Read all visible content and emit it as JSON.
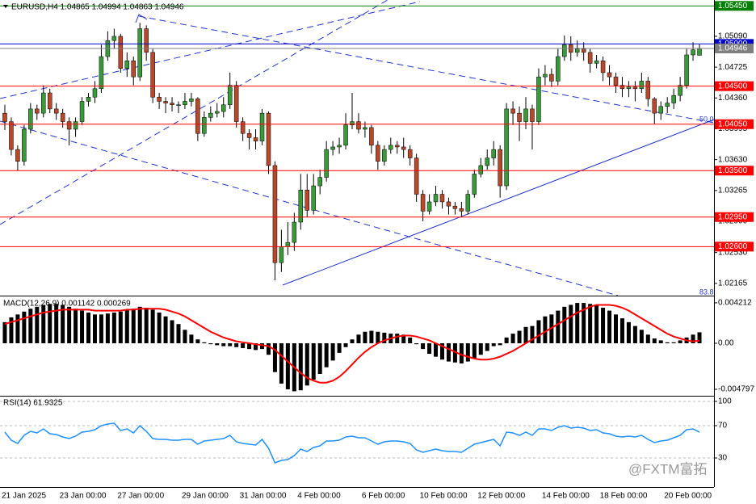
{
  "chart_data": [
    {
      "type": "candlestick",
      "title": "EURUSD,H4  1.04865 1.04994 1.04863 1.04946",
      "categories": [
        "21 Jan 2025",
        null,
        null,
        null,
        null,
        null,
        null,
        null,
        null,
        "23 Jan 00:00",
        null,
        null,
        null,
        null,
        null,
        null,
        null,
        null,
        "27 Jan 00:00",
        null,
        null,
        null,
        null,
        null,
        null,
        null,
        null,
        null,
        "29 Jan 00:00",
        null,
        null,
        null,
        null,
        null,
        null,
        null,
        null,
        "31 Jan 00:00",
        null,
        null,
        null,
        null,
        null,
        null,
        null,
        null,
        "4 Feb 00:00",
        null,
        null,
        null,
        null,
        null,
        null,
        null,
        null,
        null,
        "6 Feb 00:00",
        null,
        null,
        null,
        null,
        null,
        null,
        null,
        null,
        "10 Feb 00:00",
        null,
        null,
        null,
        null,
        null,
        null,
        null,
        null,
        "12 Feb 00:00",
        null,
        null,
        null,
        null,
        null,
        null,
        null,
        null,
        null,
        "14 Feb 00:00",
        null,
        null,
        null,
        null,
        null,
        null,
        null,
        null,
        "18 Feb 00:00",
        null,
        null,
        null,
        null,
        null,
        null,
        null,
        null,
        null,
        "20 Feb 00:00",
        null,
        null,
        null,
        null,
        null
      ],
      "open": [
        1.0418,
        1.0408,
        1.0375,
        1.0361,
        1.0399,
        1.0423,
        1.0418,
        1.0442,
        1.0423,
        1.0418,
        1.0408,
        1.0399,
        1.0408,
        1.0432,
        1.0437,
        1.0447,
        1.0485,
        1.0504,
        1.0509,
        1.0471,
        1.048,
        1.0461,
        1.0518,
        1.049,
        1.0437,
        1.0432,
        1.043,
        1.0428,
        1.0428,
        1.0432,
        1.0435,
        1.0394,
        1.0413,
        1.0418,
        1.042,
        1.0428,
        1.0451,
        1.0408,
        1.0394,
        1.0389,
        1.0385,
        1.0418,
        1.0356,
        1.0241,
        1.026,
        1.0265,
        1.0289,
        1.0327,
        1.0303,
        1.0332,
        1.0342,
        1.0375,
        1.0378,
        1.038,
        1.0404,
        1.0408,
        1.0399,
        1.0401,
        1.038,
        1.0361,
        1.0375,
        1.038,
        1.0378,
        1.0375,
        1.0365,
        1.0322,
        1.0302,
        1.0313,
        1.0322,
        1.0313,
        1.0308,
        1.0305,
        1.0302,
        1.0322,
        1.0346,
        1.0356,
        1.0365,
        1.0375,
        1.0332,
        1.0423,
        1.0418,
        1.0408,
        1.0423,
        1.0408,
        1.0461,
        1.0464,
        1.0456,
        1.0485,
        1.0499,
        1.049,
        1.0494,
        1.049,
        1.0477,
        1.048,
        1.0466,
        1.0461,
        1.0451,
        1.0447,
        1.0449,
        1.0447,
        1.0456,
        1.0435,
        1.0418,
        1.0426,
        1.043,
        1.0439,
        1.0451,
        1.0487,
        1.04865
      ],
      "high": [
        1.0428,
        1.0413,
        1.038,
        1.0404,
        1.043,
        1.0428,
        1.0451,
        1.0447,
        1.043,
        1.0423,
        1.0413,
        1.0413,
        1.0437,
        1.0442,
        1.0456,
        1.0499,
        1.0515,
        1.0518,
        1.0512,
        1.049,
        1.0485,
        1.0525,
        1.0522,
        1.0494,
        1.0442,
        1.0437,
        1.0437,
        1.0432,
        1.0442,
        1.0442,
        1.0437,
        1.042,
        1.0426,
        1.043,
        1.0437,
        1.0466,
        1.0456,
        1.0413,
        1.0399,
        1.0399,
        1.0423,
        1.042,
        1.0361,
        1.028,
        1.0289,
        1.03,
        1.0346,
        1.0346,
        1.0346,
        1.0351,
        1.0385,
        1.0385,
        1.0389,
        1.0418,
        1.0442,
        1.0418,
        1.0408,
        1.0404,
        1.0385,
        1.038,
        1.0389,
        1.0385,
        1.0389,
        1.038,
        1.037,
        1.0327,
        1.0322,
        1.0332,
        1.0327,
        1.0318,
        1.0313,
        1.0313,
        1.0327,
        1.0351,
        1.0365,
        1.0375,
        1.0385,
        1.038,
        1.043,
        1.0432,
        1.0426,
        1.0437,
        1.0428,
        1.0471,
        1.0475,
        1.0471,
        1.0494,
        1.051,
        1.0509,
        1.0504,
        1.0502,
        1.0494,
        1.0487,
        1.0485,
        1.0475,
        1.0466,
        1.0461,
        1.0456,
        1.0456,
        1.0466,
        1.0461,
        1.0437,
        1.0432,
        1.0437,
        1.0447,
        1.0461,
        1.0494,
        1.0502,
        1.04994
      ],
      "low": [
        1.0398,
        1.0368,
        1.035,
        1.0356,
        1.0394,
        1.041,
        1.0413,
        1.0418,
        1.041,
        1.0401,
        1.038,
        1.039,
        1.0404,
        1.0426,
        1.043,
        1.0442,
        1.048,
        1.0494,
        1.0466,
        1.0461,
        1.0451,
        1.0456,
        1.048,
        1.043,
        1.0423,
        1.0418,
        1.042,
        1.0418,
        1.0423,
        1.0426,
        1.0385,
        1.039,
        1.0408,
        1.0413,
        1.0413,
        1.0423,
        1.0401,
        1.0385,
        1.0375,
        1.0375,
        1.038,
        1.0346,
        1.022,
        1.023,
        1.025,
        1.0255,
        1.028,
        1.0295,
        1.0298,
        1.0322,
        1.0337,
        1.0368,
        1.037,
        1.0375,
        1.0399,
        1.0394,
        1.0389,
        1.037,
        1.0351,
        1.0356,
        1.037,
        1.037,
        1.0365,
        1.0356,
        1.0313,
        1.029,
        1.0298,
        1.0308,
        1.0305,
        1.0298,
        1.0298,
        1.0295,
        1.0298,
        1.0318,
        1.0342,
        1.0351,
        1.0356,
        1.0318,
        1.0327,
        1.0404,
        1.0385,
        1.0399,
        1.0375,
        1.0404,
        1.0451,
        1.0449,
        1.0451,
        1.048,
        1.048,
        1.0485,
        1.048,
        1.0466,
        1.0471,
        1.0456,
        1.0451,
        1.0442,
        1.0437,
        1.0437,
        1.0432,
        1.0442,
        1.0426,
        1.0405,
        1.041,
        1.0418,
        1.0423,
        1.0432,
        1.0447,
        1.048,
        1.04863
      ],
      "close": [
        1.0408,
        1.0375,
        1.0361,
        1.0399,
        1.0423,
        1.0418,
        1.0442,
        1.0423,
        1.0418,
        1.0408,
        1.0399,
        1.0408,
        1.0432,
        1.0437,
        1.0447,
        1.0485,
        1.0504,
        1.0509,
        1.0471,
        1.048,
        1.0461,
        1.0518,
        1.049,
        1.0437,
        1.0432,
        1.043,
        1.0428,
        1.0428,
        1.0432,
        1.0435,
        1.0394,
        1.0413,
        1.0418,
        1.042,
        1.0428,
        1.0451,
        1.0408,
        1.0394,
        1.0389,
        1.0385,
        1.0418,
        1.0356,
        1.0241,
        1.026,
        1.0265,
        1.0289,
        1.0327,
        1.0303,
        1.0332,
        1.0342,
        1.0375,
        1.0378,
        1.038,
        1.0404,
        1.0408,
        1.0399,
        1.0401,
        1.038,
        1.0361,
        1.0375,
        1.038,
        1.0378,
        1.0375,
        1.0365,
        1.0322,
        1.0302,
        1.0313,
        1.0322,
        1.0313,
        1.0308,
        1.0305,
        1.0302,
        1.0322,
        1.0346,
        1.0356,
        1.0365,
        1.0375,
        1.0332,
        1.0423,
        1.0418,
        1.0408,
        1.0423,
        1.0408,
        1.0461,
        1.0464,
        1.0456,
        1.0485,
        1.0499,
        1.049,
        1.0494,
        1.049,
        1.0477,
        1.048,
        1.0466,
        1.0461,
        1.0451,
        1.0447,
        1.0449,
        1.0447,
        1.0456,
        1.0435,
        1.0418,
        1.0426,
        1.043,
        1.0439,
        1.0451,
        1.0487,
        1.0493,
        1.04946
      ],
      "up_color": "#3a9a3a",
      "down_color": "#b8482a",
      "wick_color": "#000000",
      "ylim": [
        1.0202,
        1.0552
      ],
      "yticks": [
        {
          "value": 1.0509,
          "label": "1.05090"
        },
        1.04725,
        {
          "value": 1.0436,
          "label": "1.04360"
        },
        1.03995,
        {
          "value": 1.0363,
          "label": "1.03630"
        },
        1.03265,
        {
          "value": 1.029,
          "label": "1.02900"
        },
        {
          "value": 1.0253,
          "label": "1.02530"
        },
        1.02165
      ],
      "levels": [
        {
          "value": 1.0545,
          "label": "1.05450",
          "color": "#008000"
        },
        {
          "value": 1.05,
          "label": "1.05000",
          "color": "#0000cc"
        },
        {
          "value": 1.04946,
          "label": "1.04946",
          "color": "#7f7f7f"
        },
        {
          "value": 1.045,
          "label": "1.04500",
          "color": "#ff0000"
        },
        {
          "value": 1.0405,
          "label": "1.04050",
          "color": "#ff0000"
        },
        {
          "value": 1.035,
          "label": "1.03500",
          "color": "#ff0000"
        },
        {
          "value": 1.0295,
          "label": "1.02950",
          "color": "#ff0000"
        },
        {
          "value": 1.026,
          "label": "1.02600",
          "color": "#ff0000"
        }
      ],
      "annotations": [
        "50.0",
        "83.8"
      ]
    },
    {
      "type": "macd",
      "title": "MACD(12,26,9) 0.001142 0.000269",
      "histogram": {
        "color": "#000000",
        "values": [
          0.0022,
          0.0027,
          0.003,
          0.0033,
          0.0036,
          0.0038,
          0.004,
          0.0041,
          0.0041,
          0.004,
          0.0038,
          0.0036,
          0.0034,
          0.0032,
          0.003,
          0.003,
          0.0031,
          0.0032,
          0.0033,
          0.0035,
          0.0036,
          0.0038,
          0.0037,
          0.0035,
          0.0032,
          0.0028,
          0.0024,
          0.002,
          0.0014,
          0.0009,
          0.0004,
          0.0001,
          -0.0001,
          -0.0002,
          -0.0003,
          -0.0003,
          -0.0004,
          -0.0005,
          -0.0006,
          -0.0007,
          -0.0006,
          -0.0012,
          -0.003,
          -0.0042,
          -0.0048,
          -0.005,
          -0.0049,
          -0.0044,
          -0.0038,
          -0.0032,
          -0.0025,
          -0.0018,
          -0.001,
          -0.0004,
          0.0004,
          0.0009,
          0.0012,
          0.0013,
          0.0012,
          0.0011,
          0.001,
          0.001,
          0.0009,
          0.0006,
          -0.0001,
          -0.0006,
          -0.0011,
          -0.0014,
          -0.0017,
          -0.0019,
          -0.002,
          -0.0021,
          -0.0019,
          -0.0016,
          -0.0012,
          -0.0008,
          -0.0003,
          -0.0002,
          0.0006,
          0.001,
          0.0013,
          0.0017,
          0.0018,
          0.0024,
          0.0028,
          0.003,
          0.0034,
          0.0038,
          0.004,
          0.0042,
          0.0042,
          0.0041,
          0.004,
          0.0037,
          0.0034,
          0.003,
          0.0026,
          0.0022,
          0.0018,
          0.0014,
          0.0009,
          0.0005,
          0.0003,
          0.0001,
          0.0001,
          0.0003,
          0.0006,
          0.0009,
          0.001142
        ]
      },
      "signal": {
        "color": "#ff0000",
        "values": [
          0.002,
          0.0022,
          0.0024,
          0.0026,
          0.0028,
          0.003,
          0.0032,
          0.0033,
          0.0034,
          0.0035,
          0.0035,
          0.0035,
          0.0035,
          0.0035,
          0.0034,
          0.0034,
          0.0034,
          0.0034,
          0.0034,
          0.0035,
          0.0035,
          0.0036,
          0.0036,
          0.0036,
          0.0036,
          0.0035,
          0.0033,
          0.0031,
          0.0028,
          0.0024,
          0.002,
          0.0016,
          0.0012,
          0.0009,
          0.0006,
          0.0004,
          0.0002,
          0.0001,
          0,
          -0.0001,
          -0.0002,
          -0.0003,
          -0.0007,
          -0.0013,
          -0.0019,
          -0.0025,
          -0.0031,
          -0.0036,
          -0.0039,
          -0.0041,
          -0.0041,
          -0.0039,
          -0.0035,
          -0.0029,
          -0.0022,
          -0.0015,
          -0.0009,
          -0.0004,
          0,
          0.0003,
          0.0005,
          0.0007,
          0.0008,
          0.0008,
          0.0007,
          0.0005,
          0.0003,
          0,
          -0.0003,
          -0.0006,
          -0.0009,
          -0.0012,
          -0.0014,
          -0.0016,
          -0.0017,
          -0.0017,
          -0.0016,
          -0.0014,
          -0.0011,
          -0.0008,
          -0.0004,
          0,
          0.0004,
          0.0008,
          0.0012,
          0.0016,
          0.002,
          0.0024,
          0.0028,
          0.0032,
          0.0035,
          0.0038,
          0.004,
          0.004,
          0.004,
          0.0039,
          0.0037,
          0.0034,
          0.003,
          0.0026,
          0.0022,
          0.0018,
          0.0014,
          0.001,
          0.0007,
          0.0005,
          0.0003,
          0.0002,
          0.000269
        ]
      },
      "ylim": [
        -0.00547,
        0.00488
      ],
      "yticks": [
        0.004212,
        {
          "value": 0,
          "label": "0.00"
        },
        -0.004797
      ]
    },
    {
      "type": "line",
      "title": "RSI(14) 61.9325",
      "color": "#1e90ff",
      "grid": true,
      "values": [
        62,
        52,
        48,
        58,
        63,
        61,
        66,
        60,
        59,
        56,
        54,
        57,
        62,
        63,
        65,
        70,
        72,
        73,
        64,
        66,
        61,
        70,
        63,
        54,
        53,
        53,
        52,
        52,
        53,
        53,
        47,
        51,
        52,
        53,
        54,
        58,
        50,
        48,
        47,
        46,
        53,
        42,
        24,
        27,
        28,
        33,
        41,
        38,
        43,
        45,
        51,
        51,
        52,
        56,
        57,
        55,
        55,
        51,
        47,
        50,
        51,
        51,
        50,
        48,
        40,
        37,
        39,
        41,
        39,
        38,
        38,
        37,
        42,
        47,
        49,
        51,
        53,
        45,
        62,
        61,
        58,
        62,
        58,
        66,
        66,
        64,
        68,
        70,
        67,
        68,
        67,
        64,
        65,
        61,
        60,
        57,
        56,
        57,
        56,
        58,
        53,
        49,
        51,
        52,
        55,
        58,
        65,
        66,
        61.9325
      ],
      "ylim": [
        -6,
        106
      ],
      "yticks": [
        100,
        70,
        30
      ]
    }
  ],
  "watermark": "@FXTM富拓"
}
